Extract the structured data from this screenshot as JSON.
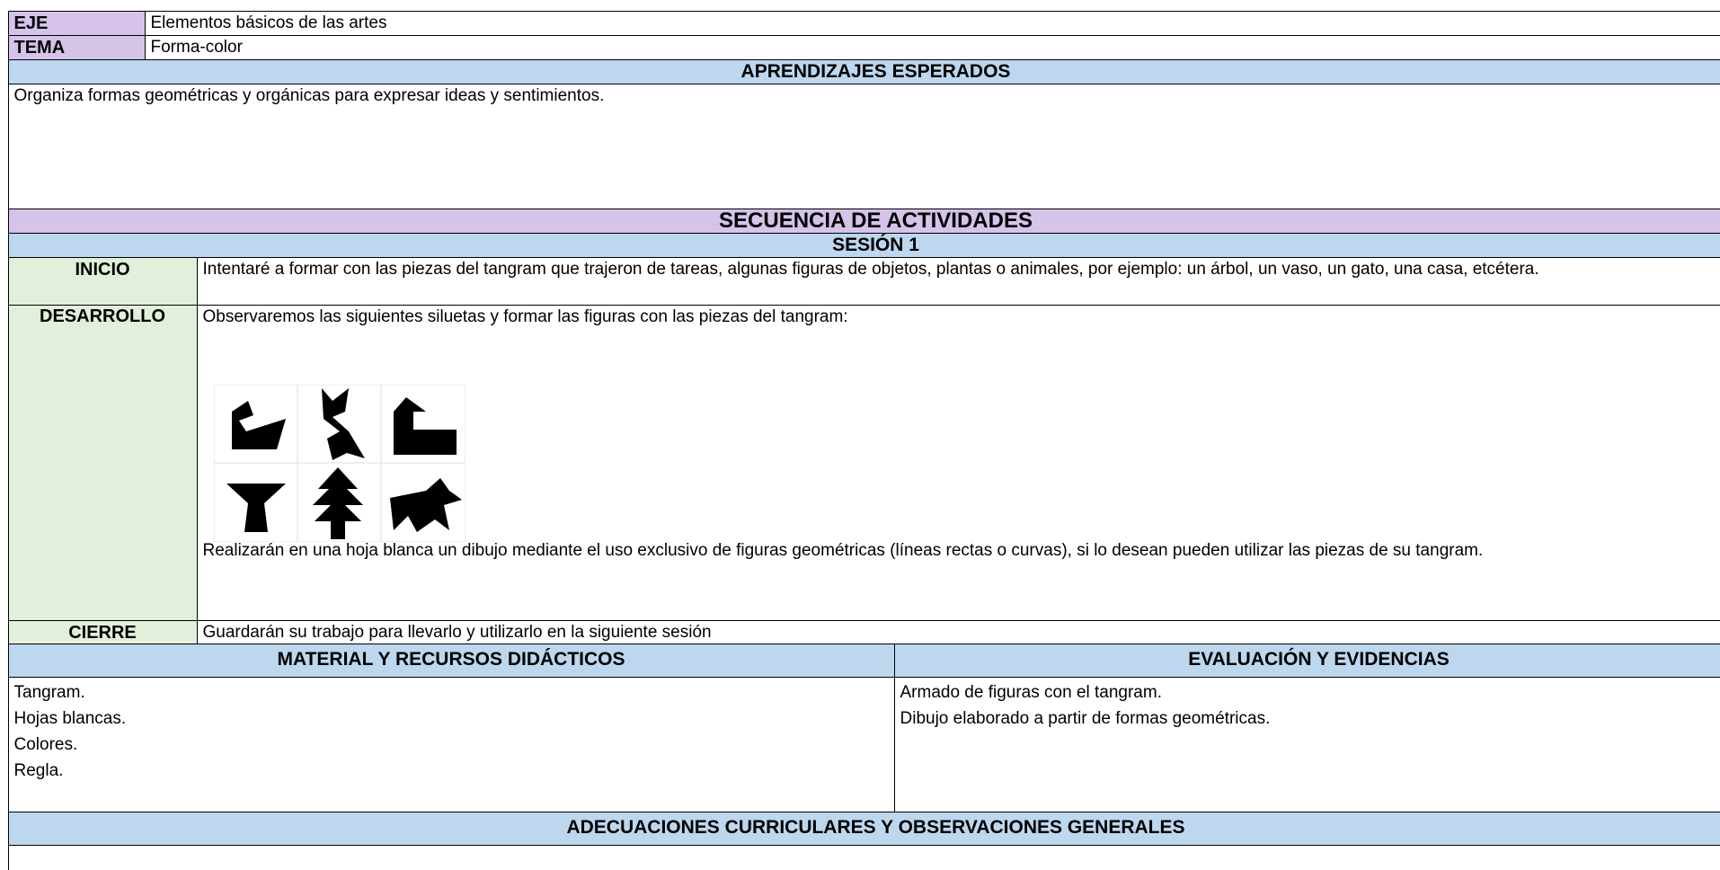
{
  "header": {
    "eje_label": "EJE",
    "eje": "Elementos básicos de las artes",
    "tema_label": "TEMA",
    "tema": "Forma-color"
  },
  "aprendizajes": {
    "title": "APRENDIZAJES ESPERADOS",
    "text": "Organiza formas geométricas y orgánicas para expresar ideas y sentimientos."
  },
  "secuencia": {
    "title": "SECUENCIA DE ACTIVIDADES",
    "sesion": "SESIÓN 1",
    "activities": [
      {
        "label": "INICIO",
        "text": "Intentaré a formar con las piezas del tangram que trajeron de tareas, algunas figuras de objetos, plantas o animales, por ejemplo: un árbol, un vaso, un gato, una casa, etcétera."
      },
      {
        "label": "DESARROLLO",
        "text": "Observaremos las siguientes siluetas y formar las figuras con las piezas del tangram:",
        "text2": "Realizarán en una hoja blanca un dibujo mediante el uso exclusivo de figuras geométricas (líneas rectas o curvas), si lo desean pueden utilizar las piezas de su tangram."
      },
      {
        "label": "CIERRE",
        "text": "Guardarán su trabajo para llevarlo y utilizarlo en la siguiente sesión"
      }
    ]
  },
  "material": {
    "title": "MATERIAL Y RECURSOS DIDÁCTICOS",
    "items": [
      "Tangram.",
      "Hojas blancas.",
      "Colores.",
      "Regla."
    ]
  },
  "evaluacion": {
    "title": "EVALUACIÓN Y EVIDENCIAS",
    "items": [
      "Armado de figuras con el tangram.",
      "Dibujo elaborado a partir de formas geométricas."
    ]
  },
  "adecuaciones": {
    "title": "ADECUACIONES CURRICULARES Y OBSERVACIONES GENERALES"
  }
}
